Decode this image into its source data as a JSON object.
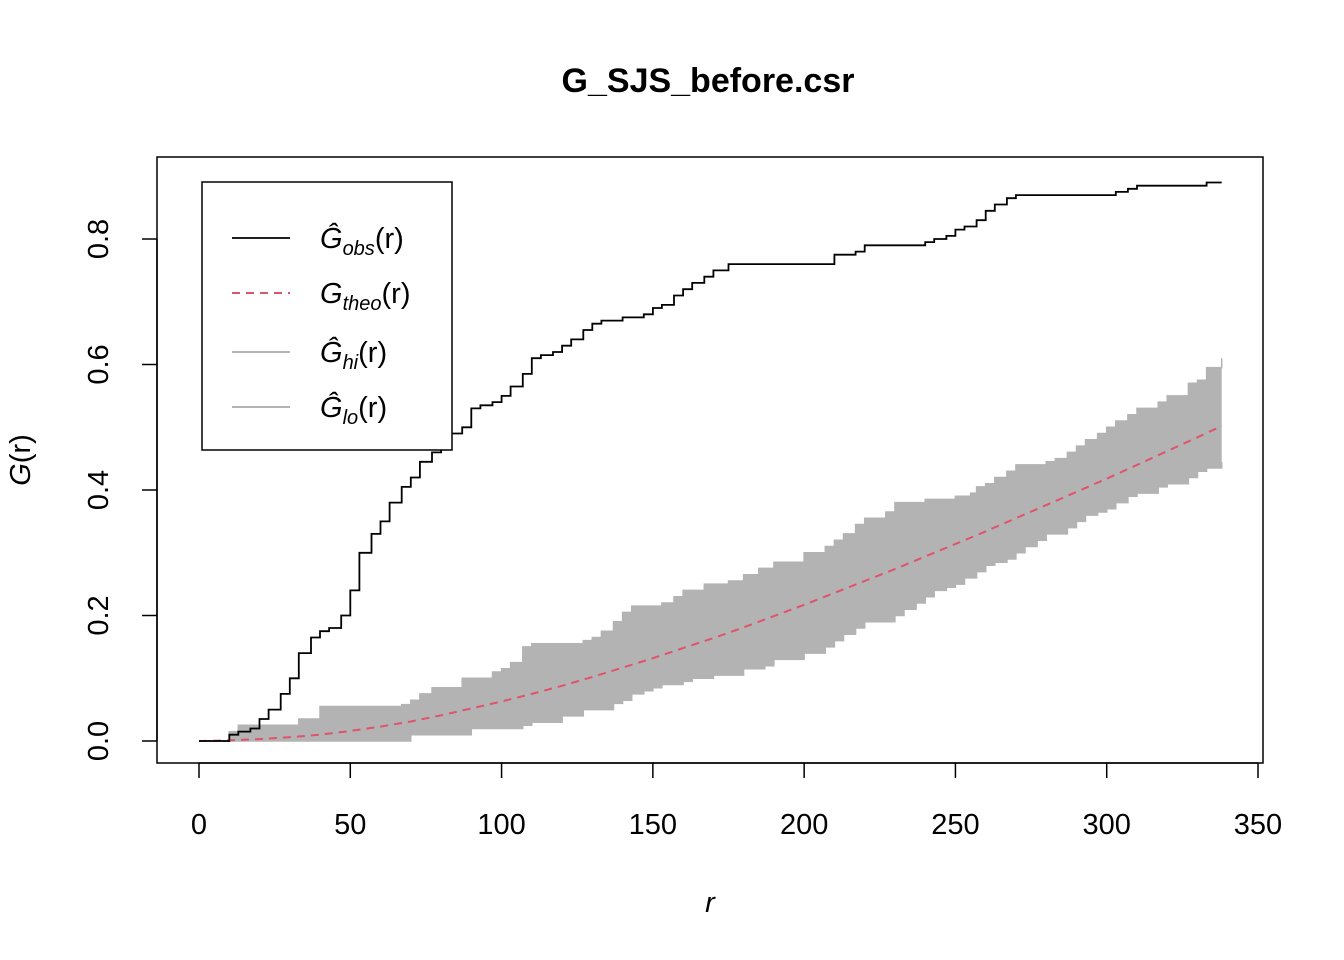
{
  "chart_data": {
    "type": "line",
    "title": "G_SJS_before.csr",
    "xlabel": "r",
    "ylabel_main": "G",
    "ylabel_arg": "(r)",
    "xlim": [
      0,
      350
    ],
    "ylim": [
      0,
      0.9
    ],
    "x_ticks": [
      0,
      50,
      100,
      150,
      200,
      250,
      300,
      350
    ],
    "x_tick_labels": [
      "0",
      "50",
      "100",
      "150",
      "200",
      "250",
      "300",
      "350"
    ],
    "y_ticks": [
      0.0,
      0.2,
      0.4,
      0.6,
      0.8
    ],
    "y_tick_labels": [
      "0.0",
      "0.2",
      "0.4",
      "0.6",
      "0.8"
    ],
    "grid": false,
    "legend_position": "top-left",
    "legend": [
      {
        "symbol": "Ĝ",
        "sub": "obs",
        "arg": "(r)",
        "color": "#000000",
        "dash": false
      },
      {
        "symbol": "G",
        "sub": "theo",
        "arg": "(r)",
        "color": "#df536b",
        "dash": true
      },
      {
        "symbol": "Ĝ",
        "sub": "hi",
        "arg": "(r)",
        "color": "#b3b3b3",
        "dash": false
      },
      {
        "symbol": "Ĝ",
        "sub": "lo",
        "arg": "(r)",
        "color": "#b3b3b3",
        "dash": false
      }
    ],
    "series": [
      {
        "name": "obs",
        "color": "#000000",
        "x": [
          0,
          7,
          10,
          13,
          17,
          20,
          23,
          27,
          30,
          33,
          37,
          40,
          43,
          47,
          50,
          53,
          57,
          60,
          63,
          67,
          70,
          73,
          77,
          80,
          83,
          87,
          90,
          93,
          97,
          100,
          103,
          107,
          110,
          113,
          117,
          120,
          123,
          127,
          130,
          133,
          137,
          140,
          143,
          147,
          150,
          153,
          157,
          160,
          163,
          167,
          170,
          175,
          180,
          190,
          200,
          207,
          210,
          213,
          217,
          220,
          227,
          230,
          233,
          237,
          240,
          243,
          247,
          250,
          253,
          257,
          260,
          263,
          267,
          270,
          280,
          290,
          300,
          303,
          307,
          310,
          320,
          330,
          333,
          338
        ],
        "y": [
          0.0,
          0.0,
          0.01,
          0.015,
          0.02,
          0.035,
          0.05,
          0.075,
          0.1,
          0.14,
          0.165,
          0.175,
          0.18,
          0.2,
          0.24,
          0.3,
          0.33,
          0.35,
          0.38,
          0.405,
          0.42,
          0.445,
          0.46,
          0.47,
          0.49,
          0.5,
          0.53,
          0.535,
          0.54,
          0.55,
          0.565,
          0.585,
          0.61,
          0.615,
          0.62,
          0.63,
          0.64,
          0.655,
          0.665,
          0.67,
          0.67,
          0.675,
          0.675,
          0.68,
          0.69,
          0.695,
          0.71,
          0.72,
          0.73,
          0.74,
          0.75,
          0.76,
          0.76,
          0.76,
          0.76,
          0.76,
          0.775,
          0.775,
          0.78,
          0.79,
          0.79,
          0.79,
          0.79,
          0.79,
          0.795,
          0.8,
          0.805,
          0.815,
          0.82,
          0.83,
          0.845,
          0.855,
          0.865,
          0.87,
          0.87,
          0.87,
          0.87,
          0.875,
          0.88,
          0.885,
          0.885,
          0.885,
          0.89,
          0.89
        ]
      },
      {
        "name": "theo",
        "color": "#df536b",
        "x": [
          0,
          10,
          20,
          30,
          40,
          50,
          60,
          70,
          80,
          90,
          100,
          110,
          120,
          130,
          140,
          150,
          160,
          170,
          180,
          190,
          200,
          210,
          220,
          230,
          240,
          250,
          260,
          270,
          280,
          290,
          300,
          310,
          320,
          330,
          338
        ],
        "y": [
          0.0,
          0.001,
          0.003,
          0.006,
          0.01,
          0.016,
          0.023,
          0.031,
          0.041,
          0.052,
          0.063,
          0.075,
          0.088,
          0.102,
          0.117,
          0.132,
          0.148,
          0.164,
          0.181,
          0.199,
          0.217,
          0.236,
          0.255,
          0.274,
          0.294,
          0.314,
          0.334,
          0.355,
          0.376,
          0.397,
          0.418,
          0.44,
          0.462,
          0.484,
          0.502
        ]
      },
      {
        "name": "hi",
        "color": "#b3b3b3",
        "x": [
          0,
          10,
          13,
          20,
          30,
          33,
          40,
          50,
          60,
          67,
          70,
          73,
          77,
          80,
          87,
          90,
          97,
          100,
          103,
          107,
          110,
          120,
          127,
          130,
          133,
          137,
          140,
          143,
          147,
          150,
          153,
          157,
          160,
          163,
          167,
          170,
          175,
          180,
          185,
          190,
          200,
          207,
          210,
          213,
          217,
          220,
          227,
          230,
          240,
          250,
          255,
          257,
          260,
          263,
          267,
          270,
          280,
          283,
          287,
          290,
          293,
          297,
          300,
          303,
          307,
          310,
          317,
          320,
          327,
          330,
          333,
          338
        ],
        "y": [
          0.0,
          0.015,
          0.025,
          0.025,
          0.025,
          0.035,
          0.055,
          0.055,
          0.055,
          0.058,
          0.065,
          0.075,
          0.085,
          0.085,
          0.1,
          0.1,
          0.11,
          0.115,
          0.125,
          0.15,
          0.155,
          0.155,
          0.16,
          0.165,
          0.175,
          0.19,
          0.205,
          0.215,
          0.215,
          0.215,
          0.22,
          0.23,
          0.24,
          0.24,
          0.25,
          0.25,
          0.255,
          0.265,
          0.275,
          0.285,
          0.3,
          0.31,
          0.32,
          0.33,
          0.345,
          0.355,
          0.365,
          0.38,
          0.385,
          0.39,
          0.395,
          0.405,
          0.41,
          0.42,
          0.43,
          0.44,
          0.445,
          0.45,
          0.46,
          0.47,
          0.48,
          0.49,
          0.5,
          0.51,
          0.52,
          0.53,
          0.54,
          0.55,
          0.57,
          0.575,
          0.595,
          0.61
        ]
      },
      {
        "name": "lo",
        "color": "#b3b3b3",
        "x": [
          0,
          10,
          20,
          30,
          40,
          50,
          60,
          67,
          70,
          80,
          87,
          90,
          100,
          107,
          110,
          120,
          127,
          130,
          137,
          140,
          143,
          147,
          150,
          153,
          160,
          163,
          167,
          170,
          180,
          187,
          190,
          200,
          207,
          210,
          213,
          217,
          220,
          230,
          233,
          237,
          240,
          243,
          247,
          250,
          253,
          257,
          260,
          263,
          267,
          270,
          273,
          277,
          280,
          287,
          290,
          293,
          297,
          300,
          303,
          307,
          310,
          317,
          320,
          327,
          330,
          333,
          338
        ],
        "y": [
          0.0,
          0.0,
          0.0,
          0.0,
          0.0,
          0.0,
          0.0,
          0.0,
          0.01,
          0.01,
          0.01,
          0.02,
          0.02,
          0.025,
          0.03,
          0.04,
          0.05,
          0.05,
          0.06,
          0.065,
          0.075,
          0.08,
          0.085,
          0.09,
          0.095,
          0.1,
          0.1,
          0.105,
          0.115,
          0.12,
          0.13,
          0.14,
          0.15,
          0.16,
          0.17,
          0.18,
          0.19,
          0.2,
          0.21,
          0.22,
          0.23,
          0.24,
          0.245,
          0.25,
          0.26,
          0.27,
          0.28,
          0.285,
          0.29,
          0.3,
          0.31,
          0.32,
          0.33,
          0.34,
          0.35,
          0.36,
          0.365,
          0.37,
          0.38,
          0.39,
          0.395,
          0.405,
          0.41,
          0.42,
          0.43,
          0.435,
          0.445
        ]
      }
    ]
  }
}
